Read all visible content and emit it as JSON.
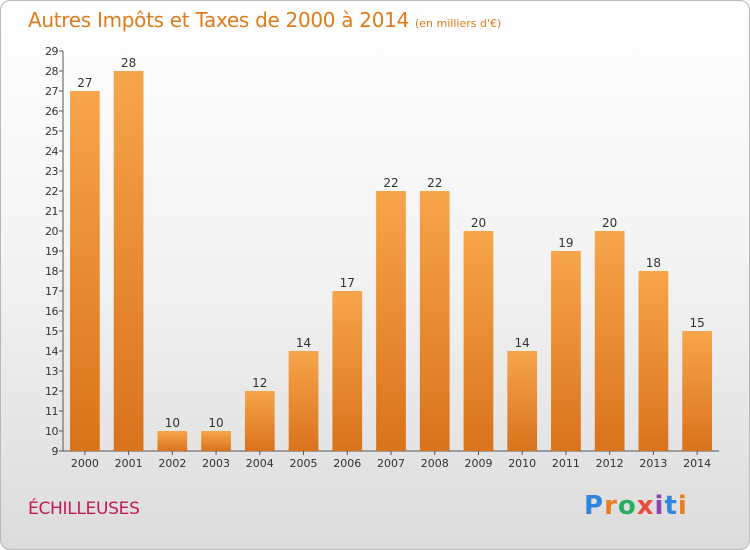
{
  "header": {
    "title": "Autres Impôts et Taxes de 2000 à 2014",
    "subtitle": "(en milliers d'€)"
  },
  "footer": {
    "commune": "ÉCHILLEUSES",
    "logo_text": "Proxiti",
    "logo_letters": [
      {
        "ch": "P",
        "color": "#2e86de"
      },
      {
        "ch": "r",
        "color": "#e67e22"
      },
      {
        "ch": "o",
        "color": "#27ae60"
      },
      {
        "ch": "x",
        "color": "#e74c3c"
      },
      {
        "ch": "i",
        "color": "#8e44ad"
      },
      {
        "ch": "t",
        "color": "#2e86de"
      },
      {
        "ch": "i",
        "color": "#e67e22"
      }
    ]
  },
  "colors": {
    "bar_top": "#f7a54b",
    "bar_bottom": "#d9731b",
    "title": "#e07b1a",
    "commune": "#c2185b"
  },
  "chart_data": {
    "type": "bar",
    "title": "Autres Impôts et Taxes de 2000 à 2014",
    "subtitle": "(en milliers d'€)",
    "xlabel": "",
    "ylabel": "",
    "ylim": [
      9,
      29
    ],
    "yticks": [
      9,
      10,
      11,
      12,
      13,
      14,
      15,
      16,
      17,
      18,
      19,
      20,
      21,
      22,
      23,
      24,
      25,
      26,
      27,
      28,
      29
    ],
    "grid": false,
    "categories": [
      "2000",
      "2001",
      "2002",
      "2003",
      "2004",
      "2005",
      "2006",
      "2007",
      "2008",
      "2009",
      "2010",
      "2011",
      "2012",
      "2013",
      "2014"
    ],
    "values": [
      27,
      28,
      10,
      10,
      12,
      14,
      17,
      22,
      22,
      20,
      14,
      19,
      20,
      18,
      15
    ]
  }
}
